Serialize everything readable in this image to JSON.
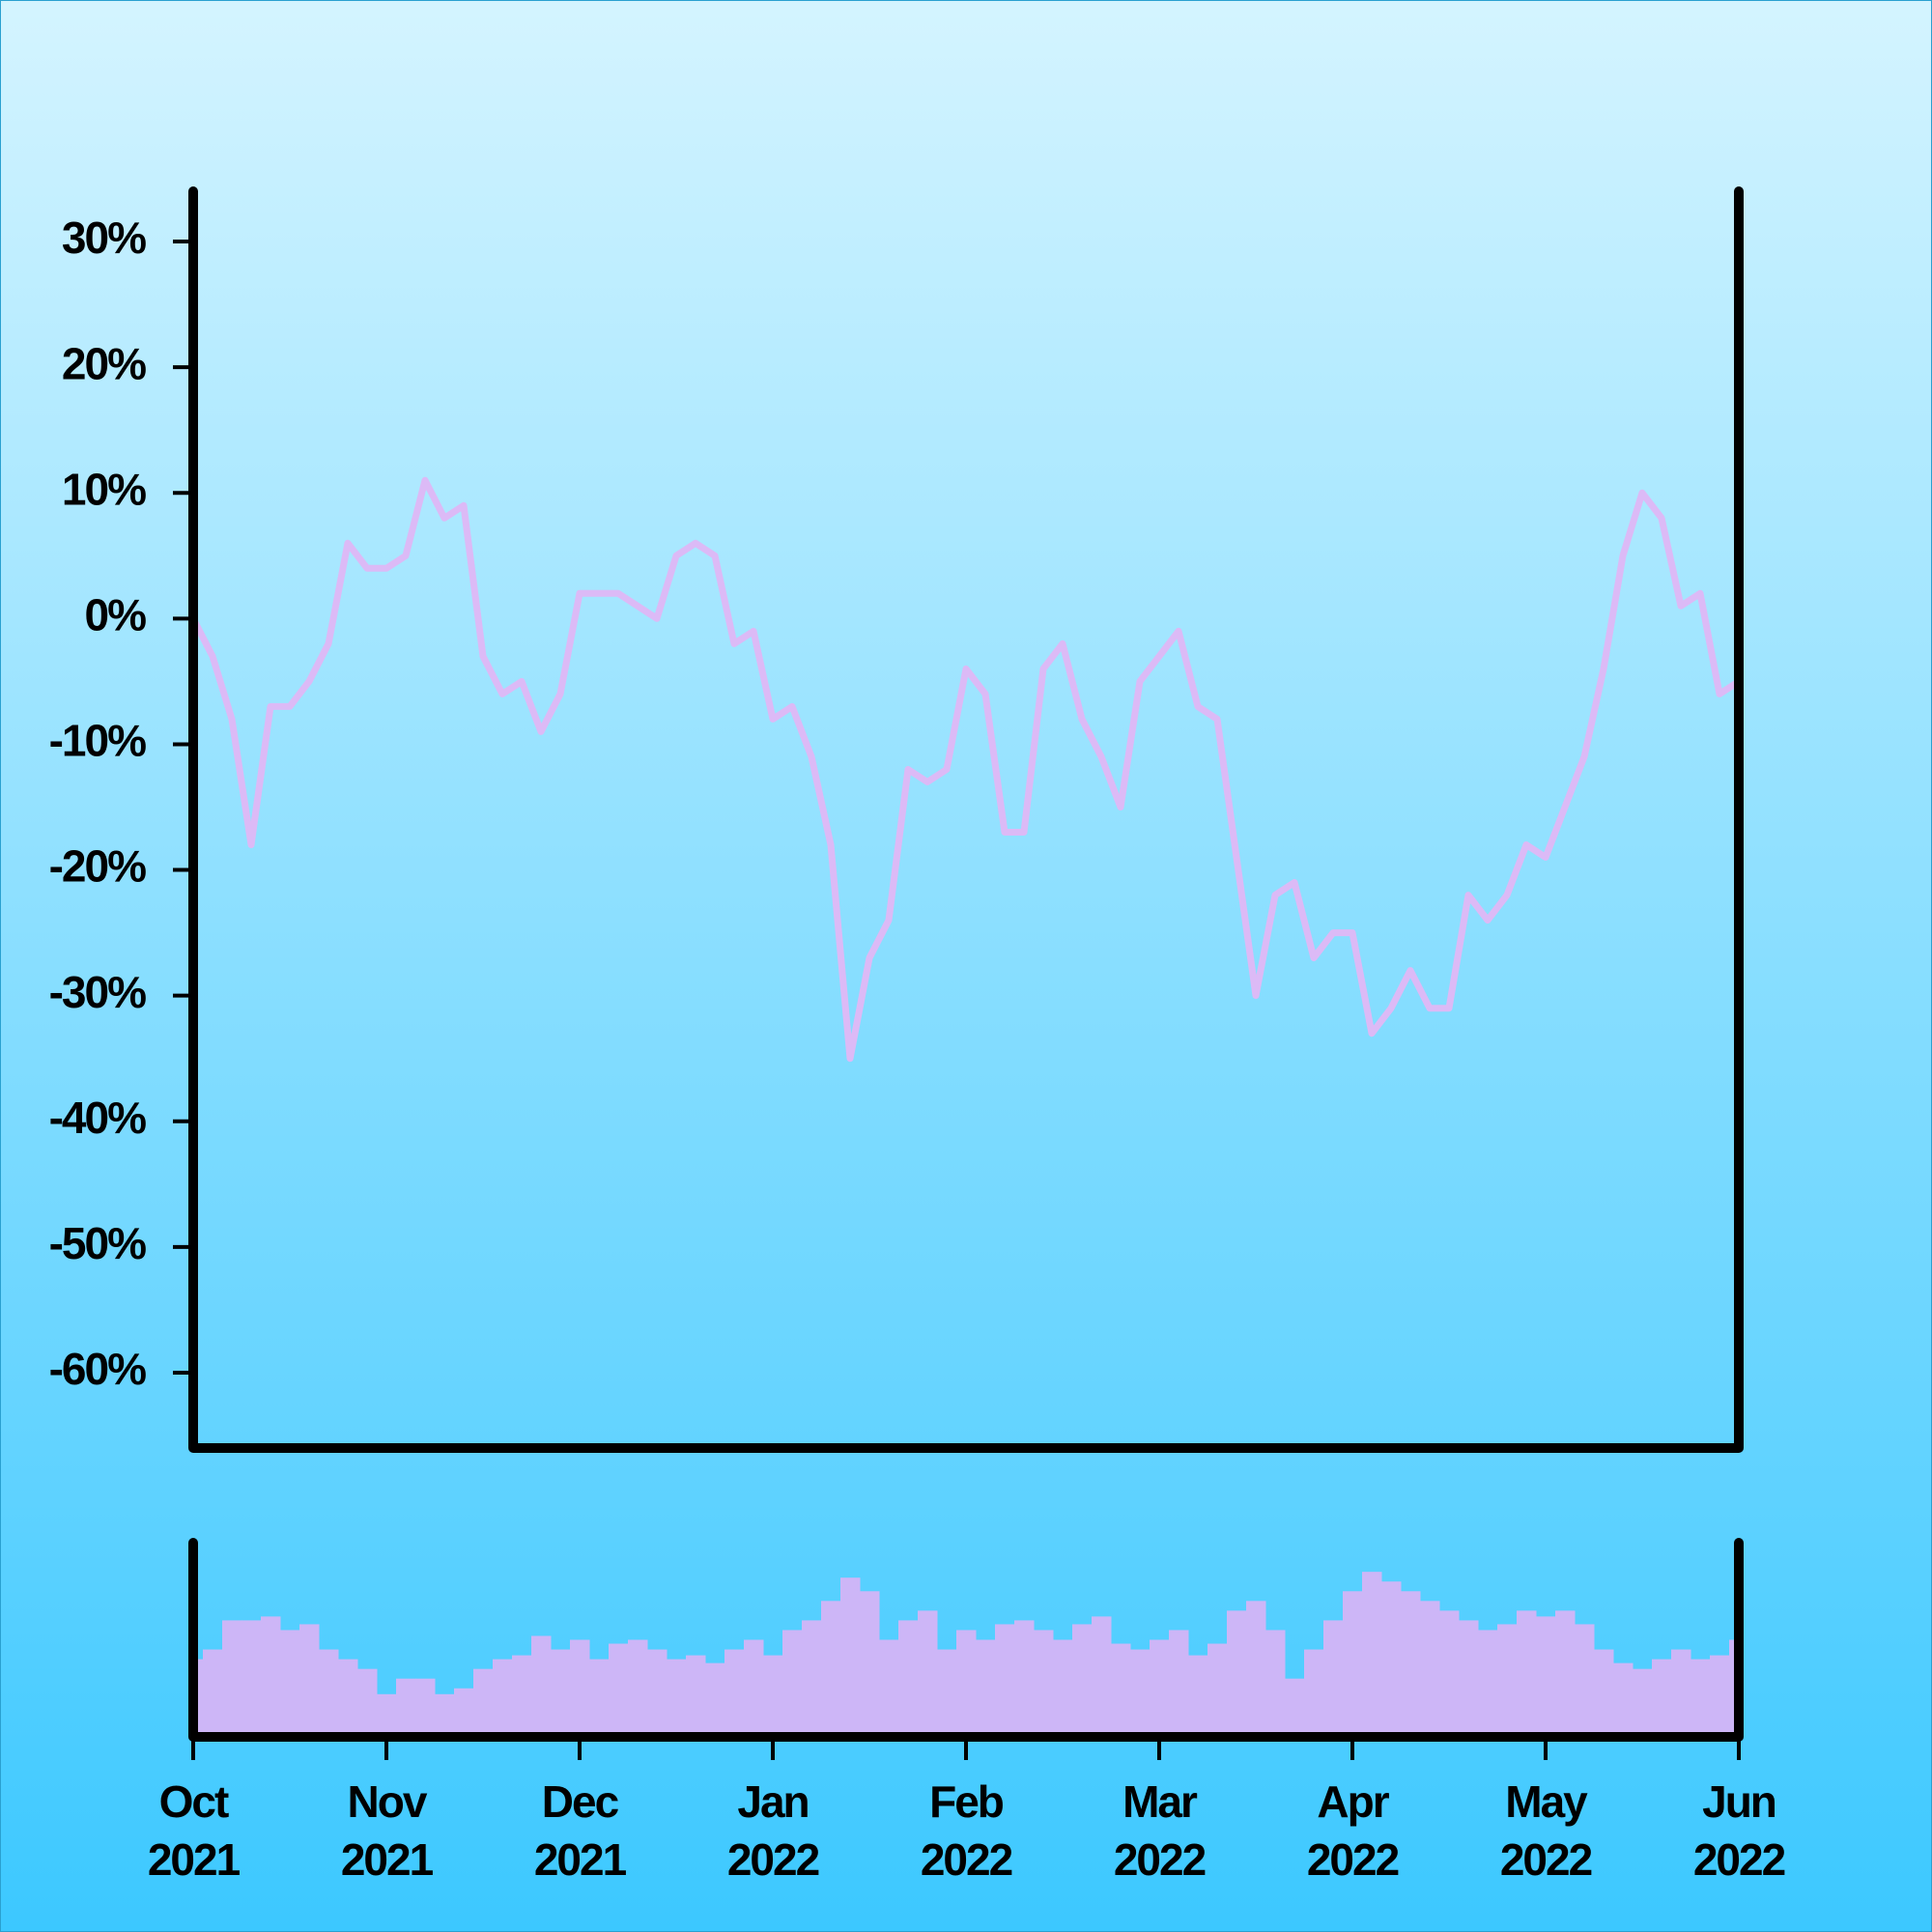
{
  "chart_data": [
    {
      "type": "line",
      "color": "#dcbaf6",
      "x": [
        0,
        0.1,
        0.2,
        0.3,
        0.4,
        0.5,
        0.6,
        0.7,
        0.8,
        0.9,
        1,
        1.1,
        1.2,
        1.3,
        1.4,
        1.5,
        1.6,
        1.7,
        1.8,
        1.9,
        2,
        2.1,
        2.2,
        2.3,
        2.4,
        2.5,
        2.6,
        2.7,
        2.8,
        2.9,
        3,
        3.1,
        3.2,
        3.3,
        3.4,
        3.5,
        3.6,
        3.7,
        3.8,
        3.9,
        4,
        4.1,
        4.2,
        4.3,
        4.4,
        4.5,
        4.6,
        4.7,
        4.8,
        4.9,
        5,
        5.1,
        5.2,
        5.3,
        5.4,
        5.5,
        5.6,
        5.7,
        5.8,
        5.9,
        6,
        6.1,
        6.2,
        6.3,
        6.4,
        6.5,
        6.6,
        6.7,
        6.8,
        6.9,
        7,
        7.1,
        7.2,
        7.3,
        7.4,
        7.5,
        7.6,
        7.7,
        7.8,
        7.9,
        8
      ],
      "values": [
        0,
        -3,
        -8,
        -18,
        -7,
        -7,
        -5,
        -2,
        6,
        4,
        4,
        5,
        11,
        8,
        9,
        -3,
        -6,
        -5,
        -9,
        -6,
        2,
        2,
        2,
        1,
        0,
        5,
        6,
        5,
        -2,
        -1,
        -8,
        -7,
        -11,
        -18,
        -35,
        -27,
        -24,
        -12,
        -13,
        -12,
        -4,
        -6,
        -17,
        -17,
        -4,
        -2,
        -8,
        -11,
        -15,
        -5,
        -3,
        -1,
        -7,
        -8,
        -19,
        -30,
        -22,
        -21,
        -27,
        -25,
        -25,
        -33,
        -31,
        -28,
        -31,
        -31,
        -22,
        -24,
        -22,
        -18,
        -19,
        -15,
        -11,
        -4,
        5,
        10,
        8,
        1,
        2,
        -6,
        -5
      ],
      "xlim": [
        0,
        8
      ],
      "ylim": [
        -66,
        34
      ],
      "yticks": [
        {
          "value": 30,
          "label": "30%"
        },
        {
          "value": 20,
          "label": "20%"
        },
        {
          "value": 10,
          "label": "10%"
        },
        {
          "value": 0,
          "label": "0%"
        },
        {
          "value": -10,
          "label": "-10%"
        },
        {
          "value": -20,
          "label": "-20%"
        },
        {
          "value": -30,
          "label": "-30%"
        },
        {
          "value": -40,
          "label": "-40%"
        },
        {
          "value": -50,
          "label": "-50%"
        },
        {
          "value": -60,
          "label": "-60%"
        }
      ]
    },
    {
      "type": "bar",
      "color": "#cdb6f7",
      "x": [
        0,
        0.1,
        0.2,
        0.3,
        0.4,
        0.5,
        0.6,
        0.7,
        0.8,
        0.9,
        1,
        1.1,
        1.2,
        1.3,
        1.4,
        1.5,
        1.6,
        1.7,
        1.8,
        1.9,
        2,
        2.1,
        2.2,
        2.3,
        2.4,
        2.5,
        2.6,
        2.7,
        2.8,
        2.9,
        3,
        3.1,
        3.2,
        3.3,
        3.4,
        3.5,
        3.6,
        3.7,
        3.8,
        3.9,
        4,
        4.1,
        4.2,
        4.3,
        4.4,
        4.5,
        4.6,
        4.7,
        4.8,
        4.9,
        5,
        5.1,
        5.2,
        5.3,
        5.4,
        5.5,
        5.6,
        5.7,
        5.8,
        5.9,
        6,
        6.1,
        6.2,
        6.3,
        6.4,
        6.5,
        6.6,
        6.7,
        6.8,
        6.9,
        7,
        7.1,
        7.2,
        7.3,
        7.4,
        7.5,
        7.6,
        7.7,
        7.8,
        7.9,
        8
      ],
      "values": [
        40,
        45,
        60,
        60,
        62,
        55,
        58,
        45,
        40,
        35,
        22,
        30,
        30,
        22,
        25,
        35,
        40,
        42,
        52,
        45,
        50,
        40,
        48,
        50,
        45,
        40,
        42,
        38,
        45,
        50,
        42,
        55,
        60,
        70,
        82,
        75,
        50,
        60,
        65,
        45,
        55,
        50,
        58,
        60,
        55,
        50,
        58,
        62,
        48,
        45,
        50,
        55,
        42,
        48,
        65,
        70,
        55,
        30,
        45,
        60,
        75,
        85,
        80,
        75,
        70,
        65,
        60,
        55,
        58,
        65,
        62,
        65,
        58,
        45,
        38,
        35,
        40,
        45,
        40,
        42,
        50
      ],
      "xlim": [
        0,
        8
      ],
      "ylim": [
        0,
        100
      ],
      "xticks": [
        {
          "value": 0,
          "label": "Oct\n2021"
        },
        {
          "value": 1,
          "label": "Nov\n2021"
        },
        {
          "value": 2,
          "label": "Dec\n2021"
        },
        {
          "value": 3,
          "label": "Jan\n2022"
        },
        {
          "value": 4,
          "label": "Feb\n2022"
        },
        {
          "value": 5,
          "label": "Mar\n2022"
        },
        {
          "value": 6,
          "label": "Apr\n2022"
        },
        {
          "value": 7,
          "label": "May\n2022"
        },
        {
          "value": 8,
          "label": "Jun\n2022"
        }
      ]
    }
  ]
}
